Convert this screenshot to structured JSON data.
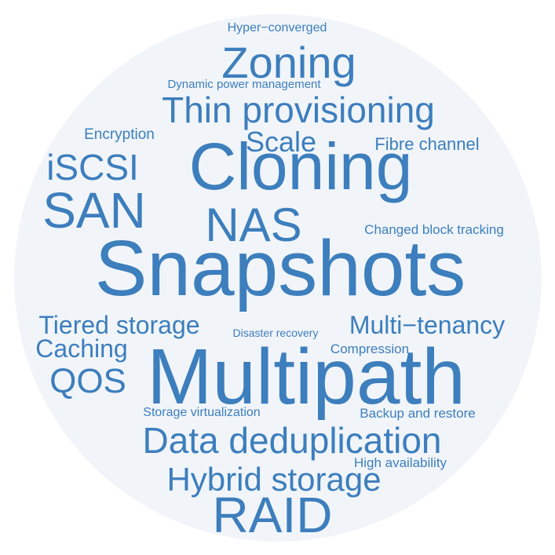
{
  "word_cloud": {
    "color": "#3d7ebd",
    "background_circle_color": "#f1f5f9",
    "words": [
      {
        "text": "Hyper−converged"
      },
      {
        "text": "Zoning"
      },
      {
        "text": "Dynamic power management"
      },
      {
        "text": "Thin provisioning"
      },
      {
        "text": "Encryption"
      },
      {
        "text": "Scale"
      },
      {
        "text": "Fibre channel"
      },
      {
        "text": "iSCSI"
      },
      {
        "text": "Cloning"
      },
      {
        "text": "SAN"
      },
      {
        "text": "NAS"
      },
      {
        "text": "Changed block tracking"
      },
      {
        "text": "Snapshots"
      },
      {
        "text": "Tiered storage"
      },
      {
        "text": "Disaster recovery"
      },
      {
        "text": "Multi−tenancy"
      },
      {
        "text": "Caching"
      },
      {
        "text": "Compression"
      },
      {
        "text": "QOS"
      },
      {
        "text": "Multipath"
      },
      {
        "text": "Storage virtualization"
      },
      {
        "text": "Backup and restore"
      },
      {
        "text": "Data deduplication"
      },
      {
        "text": "High availability"
      },
      {
        "text": "Hybrid storage"
      },
      {
        "text": "RAID"
      }
    ]
  }
}
